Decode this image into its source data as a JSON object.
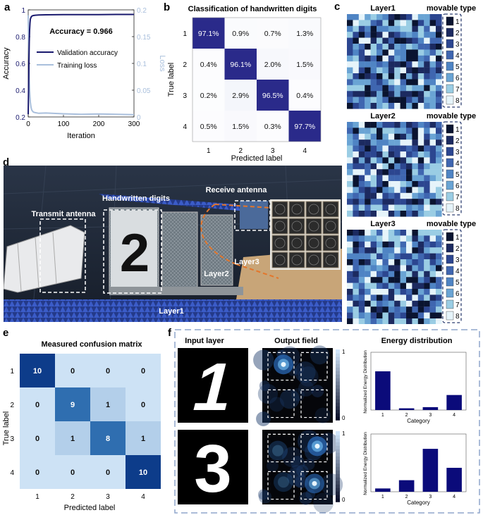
{
  "panel_labels": {
    "a": "a",
    "b": "b",
    "c": "c",
    "d": "d",
    "e": "e",
    "f": "f"
  },
  "chart_data": [
    {
      "type": "line",
      "panel": "a",
      "annotation": "Accuracy = 0.966",
      "xlabel": "Iteration",
      "ylabel": "Accuracy",
      "y2label": "Loss",
      "xlim": [
        0,
        300
      ],
      "ylim": [
        0.2,
        1
      ],
      "y2lim": [
        0,
        0.2
      ],
      "xticks": [
        "0",
        "100",
        "200",
        "300"
      ],
      "yticks": [
        "0.2",
        "0.4",
        "0.6",
        "0.8",
        "1"
      ],
      "y2ticks": [
        "0",
        "0.05",
        "0.1",
        "0.15",
        "0.2"
      ],
      "legend_position": "center-right",
      "series": [
        {
          "name": "Validation accuracy",
          "color": "#1a1a6e",
          "axis": "left",
          "x": [
            0,
            1,
            2,
            3,
            4,
            5,
            6,
            8,
            10,
            12,
            15,
            20,
            30,
            50,
            100,
            150,
            200,
            250,
            300
          ],
          "y": [
            0.22,
            0.4,
            0.6,
            0.76,
            0.85,
            0.9,
            0.93,
            0.945,
            0.952,
            0.956,
            0.958,
            0.96,
            0.962,
            0.963,
            0.964,
            0.965,
            0.965,
            0.966,
            0.966
          ]
        },
        {
          "name": "Training loss",
          "color": "#a9bfdc",
          "axis": "right",
          "x": [
            0,
            1,
            2,
            3,
            4,
            5,
            6,
            8,
            10,
            12,
            15,
            20,
            30,
            50,
            100,
            150,
            200,
            250,
            300
          ],
          "y": [
            0.19,
            0.15,
            0.1,
            0.07,
            0.05,
            0.038,
            0.028,
            0.018,
            0.013,
            0.011,
            0.009,
            0.008,
            0.007,
            0.007,
            0.006,
            0.006,
            0.006,
            0.005,
            0.005
          ]
        }
      ]
    },
    {
      "type": "heatmap",
      "panel": "b",
      "title": "Classification of handwritten digits",
      "xlabel": "Predicted label",
      "ylabel": "True label",
      "categories": [
        "1",
        "2",
        "3",
        "4"
      ],
      "values": [
        [
          97.1,
          0.9,
          0.7,
          1.3
        ],
        [
          0.4,
          96.1,
          2.0,
          1.5
        ],
        [
          0.2,
          2.9,
          96.5,
          0.4
        ],
        [
          0.5,
          1.5,
          0.3,
          97.7
        ]
      ],
      "cell_labels": [
        [
          "97.1%",
          "0.9%",
          "0.7%",
          "1.3%"
        ],
        [
          "0.4%",
          "96.1%",
          "2.0%",
          "1.5%"
        ],
        [
          "0.2%",
          "2.9%",
          "96.5%",
          "0.4%"
        ],
        [
          "0.5%",
          "1.5%",
          "0.3%",
          "97.7%"
        ]
      ]
    },
    {
      "type": "heatmap",
      "panel": "e",
      "title": "Measured confusion matrix",
      "xlabel": "Predicted label",
      "ylabel": "True label",
      "categories": [
        "1",
        "2",
        "3",
        "4"
      ],
      "values": [
        [
          10,
          0,
          0,
          0
        ],
        [
          0,
          9,
          1,
          0
        ],
        [
          0,
          1,
          8,
          1
        ],
        [
          0,
          0,
          0,
          10
        ]
      ]
    },
    {
      "type": "bar",
      "panel": "f-top",
      "xlabel": "Category",
      "ylabel": "Normalized Energy Distribution",
      "categories": [
        "1",
        "2",
        "3",
        "4"
      ],
      "values": [
        0.67,
        0.03,
        0.05,
        0.26
      ],
      "ylim": [
        0,
        1
      ]
    },
    {
      "type": "bar",
      "panel": "f-bottom",
      "xlabel": "Category",
      "ylabel": "Normalized Energy Distribution",
      "categories": [
        "1",
        "2",
        "3",
        "4"
      ],
      "values": [
        0.04,
        0.14,
        0.52,
        0.29
      ],
      "ylim": [
        0,
        0.7
      ]
    }
  ],
  "panel_c": {
    "layers": [
      "Layer1",
      "Layer2",
      "Layer3"
    ],
    "legend_title": "movable type",
    "types": [
      "1",
      "2",
      "3",
      "4",
      "5",
      "6",
      "7",
      "8"
    ],
    "type_colors": [
      "#0a1430",
      "#1c2a60",
      "#2c4690",
      "#3f66b0",
      "#4f84c4",
      "#6aa4d4",
      "#9acde4",
      "#e6f4fa"
    ]
  },
  "panel_d": {
    "labels": {
      "handwritten": "Handwritten digits",
      "receive": "Receive antenna",
      "transmit": "Transmit antenna",
      "layer1": "Layer1",
      "layer2": "Layer2",
      "layer3": "Layer3",
      "digit": "2"
    }
  },
  "panel_f": {
    "headers": {
      "input": "Input layer",
      "output": "Output field",
      "energy": "Energy distribution"
    },
    "colorbar_max": "1",
    "colorbar_min": "0",
    "colorbar_label": "Normalized Energy Distribution",
    "digits": [
      "1",
      "3"
    ]
  }
}
